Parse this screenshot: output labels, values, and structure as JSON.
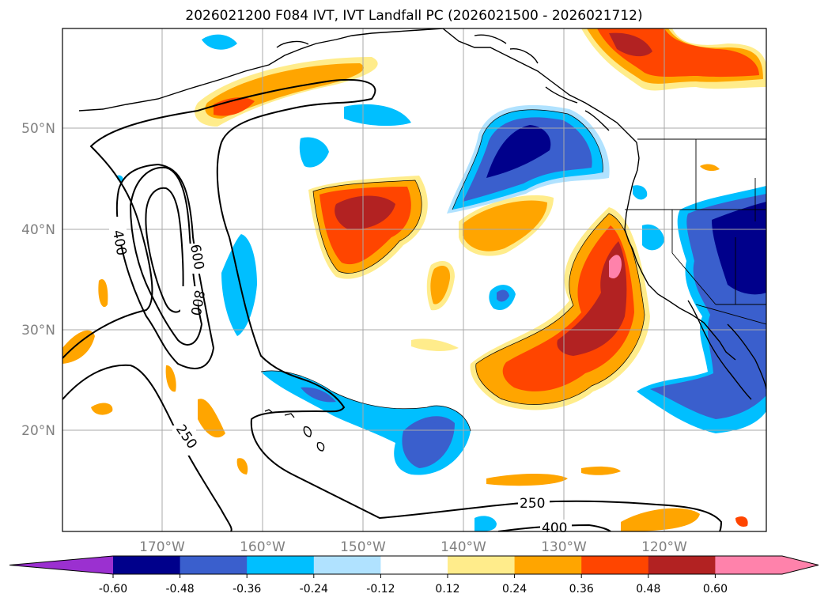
{
  "title": "2026021200 F084 IVT, IVT Landfall PC (2026021500 - 2026021712)",
  "map": {
    "lat_labels": [
      "50°N",
      "40°N",
      "30°N",
      "20°N"
    ],
    "lon_labels": [
      "170°W",
      "160°W",
      "150°W",
      "140°W",
      "130°W",
      "120°W"
    ],
    "contour_labels": [
      "400",
      "600",
      "800",
      "250",
      "250",
      "400"
    ],
    "grid": true
  },
  "colorbar": {
    "ticks": [
      "-0.60",
      "-0.48",
      "-0.36",
      "-0.24",
      "-0.12",
      "0.12",
      "0.24",
      "0.36",
      "0.48",
      "0.60"
    ],
    "colors": [
      "#9b30d0",
      "#00008b",
      "#3a5fcd",
      "#00bfff",
      "#b0e2ff",
      "#ffffff",
      "#ffec8b",
      "#ffa500",
      "#ff4500",
      "#b22222",
      "#ff82ab"
    ],
    "extend": "both"
  }
}
